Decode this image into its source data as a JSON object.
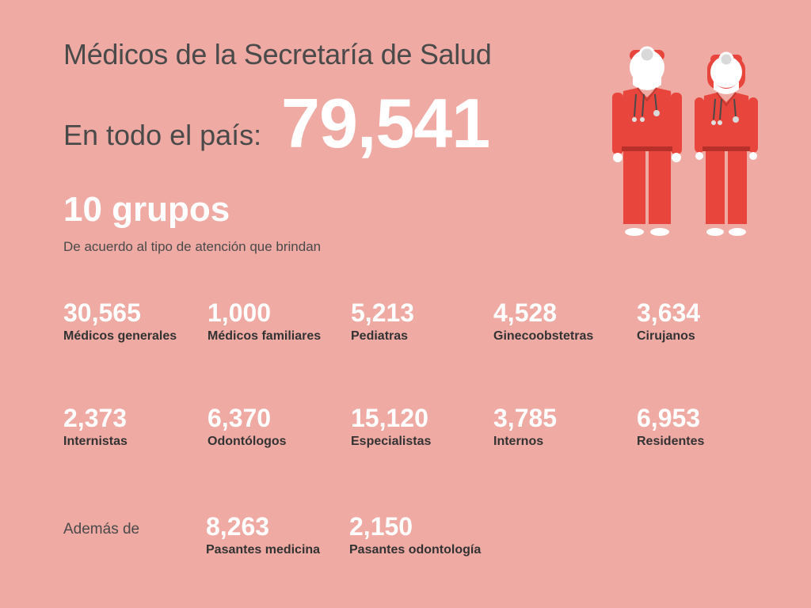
{
  "header": {
    "title": "Médicos de la Secretaría de Salud",
    "total_label": "En todo el país:",
    "total_value": "79,541"
  },
  "groups": {
    "title": "10 grupos",
    "subtitle": "De acuerdo al tipo de atención que brindan"
  },
  "stats": [
    {
      "value": "30,565",
      "label": "Médicos generales"
    },
    {
      "value": "1,000",
      "label": "Médicos familiares"
    },
    {
      "value": "5,213",
      "label": "Pediatras"
    },
    {
      "value": "4,528",
      "label": "Ginecoobstetras"
    },
    {
      "value": "3,634",
      "label": "Cirujanos"
    },
    {
      "value": "2,373",
      "label": "Internistas"
    },
    {
      "value": "6,370",
      "label": "Odontólogos"
    },
    {
      "value": "15,120",
      "label": "Especialistas"
    },
    {
      "value": "3,785",
      "label": "Internos"
    },
    {
      "value": "6,953",
      "label": "Residentes"
    }
  ],
  "extra": {
    "label": "Además de",
    "items": [
      {
        "value": "8,263",
        "label": "Pasantes medicina"
      },
      {
        "value": "2,150",
        "label": "Pasantes odontología"
      }
    ]
  },
  "colors": {
    "background": "#efaaa4",
    "scrubs": "#e8453c",
    "accent_white": "#ffffff"
  },
  "icons": [
    "male-doctor-icon",
    "female-doctor-icon"
  ]
}
